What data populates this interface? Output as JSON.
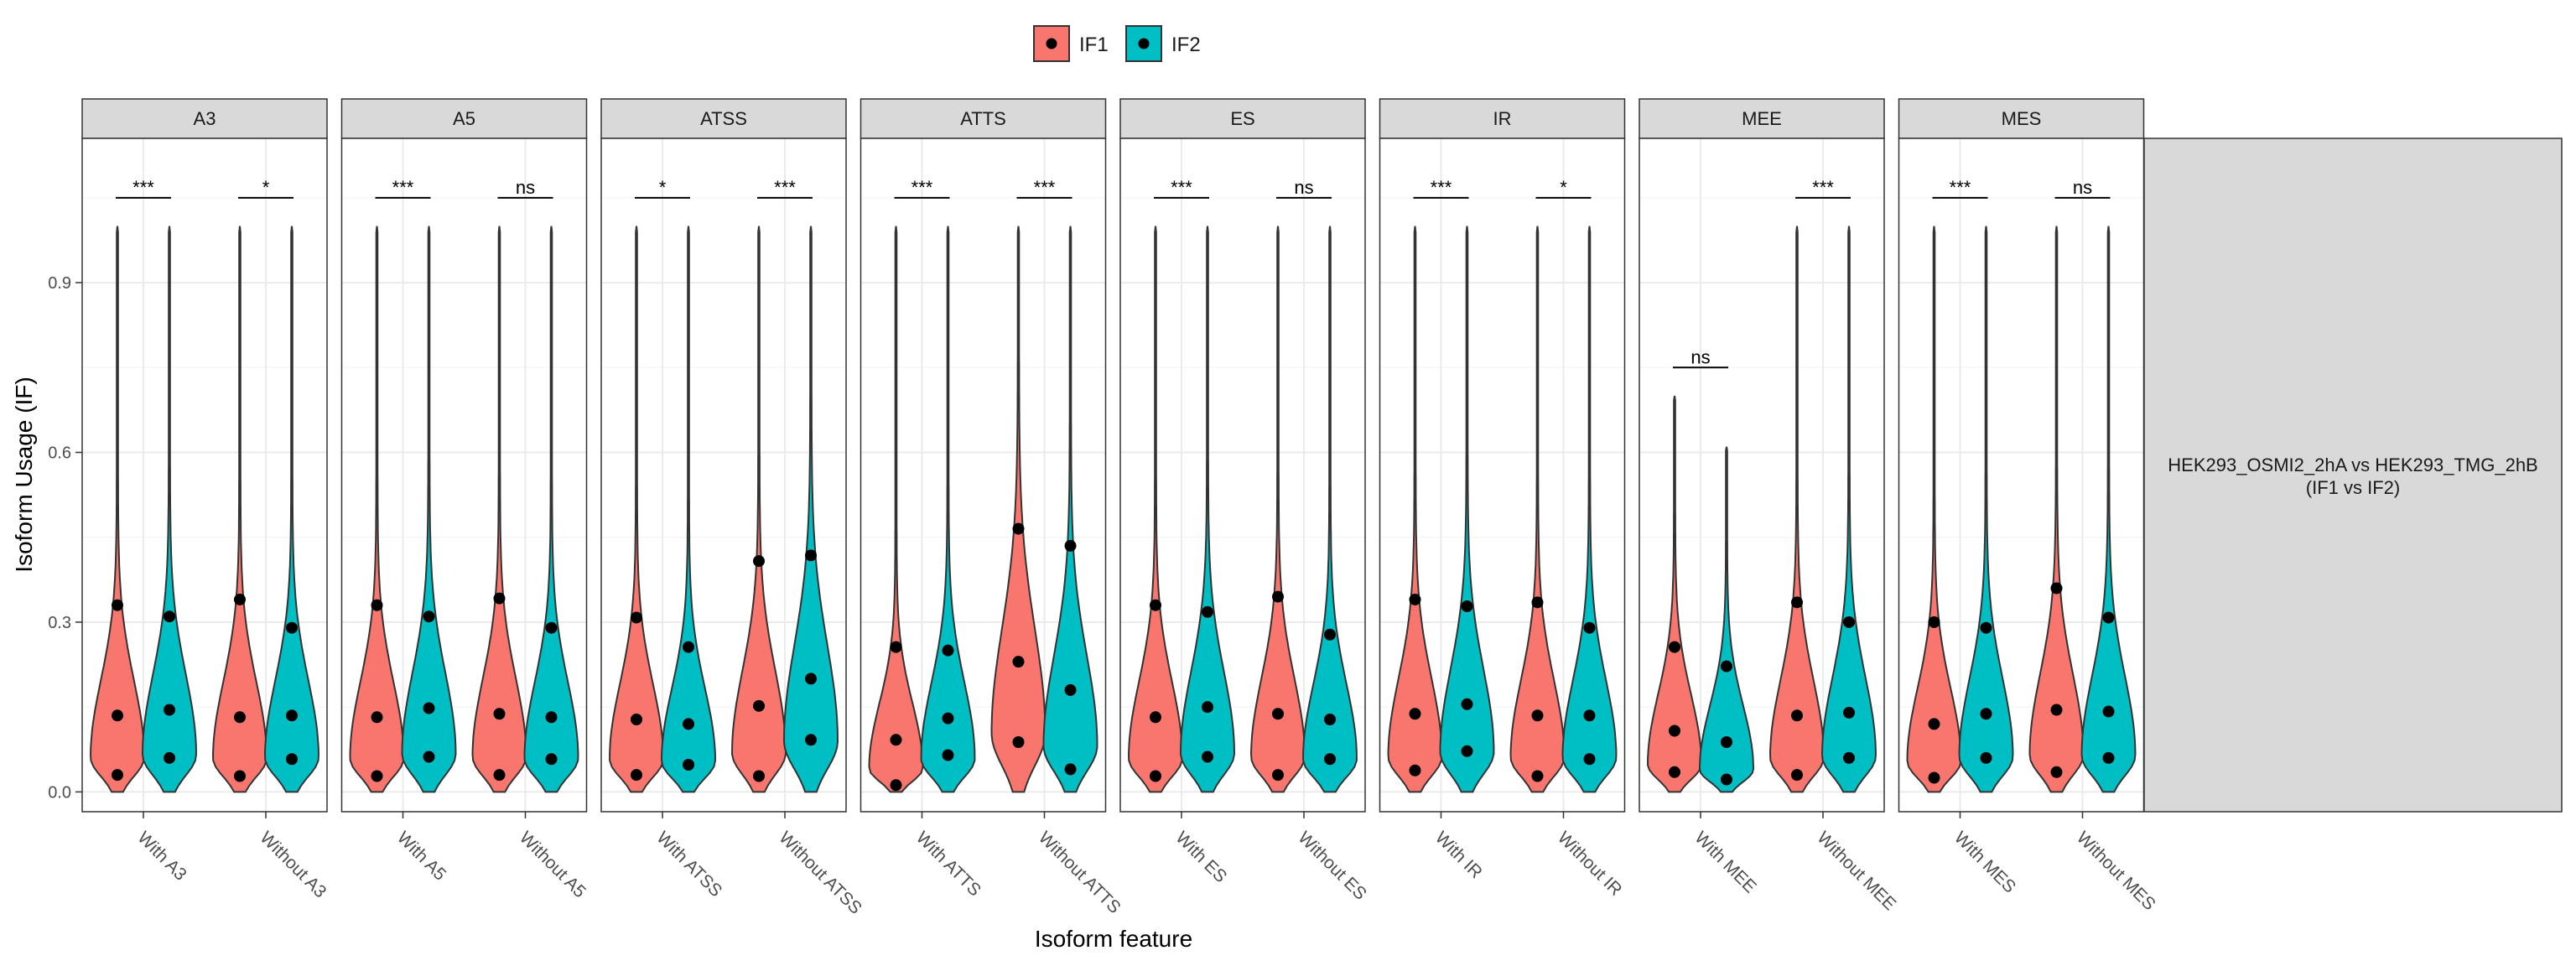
{
  "chart_data": {
    "type": "violin",
    "xlabel": "Isoform feature",
    "ylabel": "Isoform Usage (IF)",
    "ylim": [
      -0.035,
      1.155
    ],
    "y_ticks": [
      0.0,
      0.3,
      0.6,
      0.9
    ],
    "y_tick_labels": [
      "0.0",
      "0.3",
      "0.6",
      "0.9"
    ],
    "grid": true,
    "legend": {
      "position": "top-center",
      "entries": [
        {
          "name": "IF1",
          "color": "#F8766D"
        },
        {
          "name": "IF2",
          "color": "#00BFC4"
        }
      ]
    },
    "strip_label_right": [
      "HEK293_OSMI2_2hA vs HEK293_TMG_2hB",
      "(IF1 vs IF2)"
    ],
    "panels": [
      {
        "title": "A3",
        "categories": [
          "With A3",
          "Without A3"
        ],
        "max": [
          [
            1.0,
            1.0
          ],
          [
            1.0,
            1.0
          ]
        ],
        "quantiles": [
          [
            [
              0.03,
              0.135,
              0.33
            ],
            [
              0.06,
              0.145,
              0.31
            ]
          ],
          [
            [
              0.028,
              0.132,
              0.34
            ],
            [
              0.058,
              0.135,
              0.29
            ]
          ]
        ],
        "significance": [
          "***",
          "*"
        ]
      },
      {
        "title": "A5",
        "categories": [
          "With A5",
          "Without A5"
        ],
        "max": [
          [
            1.0,
            1.0
          ],
          [
            1.0,
            1.0
          ]
        ],
        "quantiles": [
          [
            [
              0.028,
              0.132,
              0.33
            ],
            [
              0.062,
              0.148,
              0.31
            ]
          ],
          [
            [
              0.03,
              0.138,
              0.342
            ],
            [
              0.058,
              0.132,
              0.29
            ]
          ]
        ],
        "significance": [
          "***",
          "ns"
        ]
      },
      {
        "title": "ATSS",
        "categories": [
          "With ATSS",
          "Without ATSS"
        ],
        "max": [
          [
            1.0,
            1.0
          ],
          [
            1.0,
            1.0
          ]
        ],
        "quantiles": [
          [
            [
              0.03,
              0.128,
              0.308
            ],
            [
              0.048,
              0.12,
              0.256
            ]
          ],
          [
            [
              0.028,
              0.152,
              0.408
            ],
            [
              0.092,
              0.2,
              0.418
            ]
          ]
        ],
        "significance": [
          "*",
          "***"
        ]
      },
      {
        "title": "ATTS",
        "categories": [
          "With ATTS",
          "Without ATTS"
        ],
        "max": [
          [
            1.0,
            1.0
          ],
          [
            1.0,
            1.0
          ]
        ],
        "quantiles": [
          [
            [
              0.012,
              0.092,
              0.256
            ],
            [
              0.065,
              0.13,
              0.25
            ]
          ],
          [
            [
              0.088,
              0.23,
              0.465
            ],
            [
              0.04,
              0.18,
              0.435
            ]
          ]
        ],
        "significance": [
          "***",
          "***"
        ]
      },
      {
        "title": "ES",
        "categories": [
          "With ES",
          "Without ES"
        ],
        "max": [
          [
            1.0,
            1.0
          ],
          [
            1.0,
            1.0
          ]
        ],
        "quantiles": [
          [
            [
              0.028,
              0.132,
              0.33
            ],
            [
              0.062,
              0.15,
              0.318
            ]
          ],
          [
            [
              0.03,
              0.138,
              0.345
            ],
            [
              0.058,
              0.128,
              0.278
            ]
          ]
        ],
        "significance": [
          "***",
          "ns"
        ]
      },
      {
        "title": "IR",
        "categories": [
          "With IR",
          "Without IR"
        ],
        "max": [
          [
            1.0,
            1.0
          ],
          [
            1.0,
            1.0
          ]
        ],
        "quantiles": [
          [
            [
              0.038,
              0.138,
              0.34
            ],
            [
              0.072,
              0.155,
              0.328
            ]
          ],
          [
            [
              0.028,
              0.135,
              0.335
            ],
            [
              0.058,
              0.135,
              0.29
            ]
          ]
        ],
        "significance": [
          "***",
          "*"
        ]
      },
      {
        "title": "MEE",
        "categories": [
          "With MEE",
          "Without MEE"
        ],
        "max": [
          [
            0.7,
            0.61
          ],
          [
            1.0,
            1.0
          ]
        ],
        "quantiles": [
          [
            [
              0.035,
              0.108,
              0.256
            ],
            [
              0.022,
              0.088,
              0.222
            ]
          ],
          [
            [
              0.03,
              0.135,
              0.335
            ],
            [
              0.06,
              0.14,
              0.3
            ]
          ]
        ],
        "significance": [
          "ns",
          "***"
        ]
      },
      {
        "title": "MES",
        "categories": [
          "With MES",
          "Without MES"
        ],
        "max": [
          [
            1.0,
            1.0
          ],
          [
            1.0,
            1.0
          ]
        ],
        "quantiles": [
          [
            [
              0.025,
              0.12,
              0.3
            ],
            [
              0.06,
              0.138,
              0.29
            ]
          ],
          [
            [
              0.035,
              0.145,
              0.36
            ],
            [
              0.06,
              0.142,
              0.308
            ]
          ]
        ],
        "significance": [
          "***",
          "ns"
        ]
      }
    ]
  }
}
